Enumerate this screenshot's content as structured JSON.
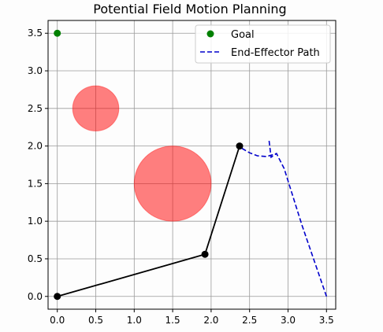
{
  "chart_data": {
    "type": "scatter",
    "title": "Potential Field Motion Planning",
    "xlabel": "",
    "ylabel": "",
    "xlim": [
      -0.12,
      3.62
    ],
    "ylim": [
      -0.17,
      3.67
    ],
    "x_ticks": [
      0.0,
      0.5,
      1.0,
      1.5,
      2.0,
      2.5,
      3.0,
      3.5
    ],
    "y_ticks": [
      0.0,
      0.5,
      1.0,
      1.5,
      2.0,
      2.5,
      3.0,
      3.5
    ],
    "x_tick_labels": [
      "0.0",
      "0.5",
      "1.0",
      "1.5",
      "2.0",
      "2.5",
      "3.0",
      "3.5"
    ],
    "y_tick_labels": [
      "0.0",
      "0.5",
      "1.0",
      "1.5",
      "2.0",
      "2.5",
      "3.0",
      "3.5"
    ],
    "grid": true,
    "legend_position": "top-right",
    "goal": {
      "name": "Goal",
      "x": 0.0,
      "y": 3.5,
      "color": "#008000"
    },
    "obstacles": [
      {
        "x": 0.5,
        "y": 2.5,
        "radius": 0.3,
        "color": "#ff0000",
        "alpha": 0.5
      },
      {
        "x": 1.5,
        "y": 1.5,
        "radius": 0.5,
        "color": "#ff0000",
        "alpha": 0.5
      }
    ],
    "arm": {
      "color": "#000000",
      "joints": [
        {
          "x": 0.0,
          "y": 0.0
        },
        {
          "x": 1.92,
          "y": 0.56
        },
        {
          "x": 2.37,
          "y": 2.0
        }
      ]
    },
    "path": {
      "name": "End-Effector Path",
      "color": "#0000cc",
      "style": "dashed",
      "points": [
        {
          "x": 3.5,
          "y": 0.0
        },
        {
          "x": 3.18,
          "y": 0.95
        },
        {
          "x": 2.95,
          "y": 1.7
        },
        {
          "x": 2.85,
          "y": 1.9
        },
        {
          "x": 2.78,
          "y": 1.85
        },
        {
          "x": 2.75,
          "y": 2.1
        }
      ],
      "trail": [
        {
          "x": 2.4,
          "y": 1.97
        },
        {
          "x": 2.5,
          "y": 1.91
        },
        {
          "x": 2.6,
          "y": 1.87
        },
        {
          "x": 2.72,
          "y": 1.86
        },
        {
          "x": 2.85,
          "y": 1.9
        }
      ]
    }
  }
}
